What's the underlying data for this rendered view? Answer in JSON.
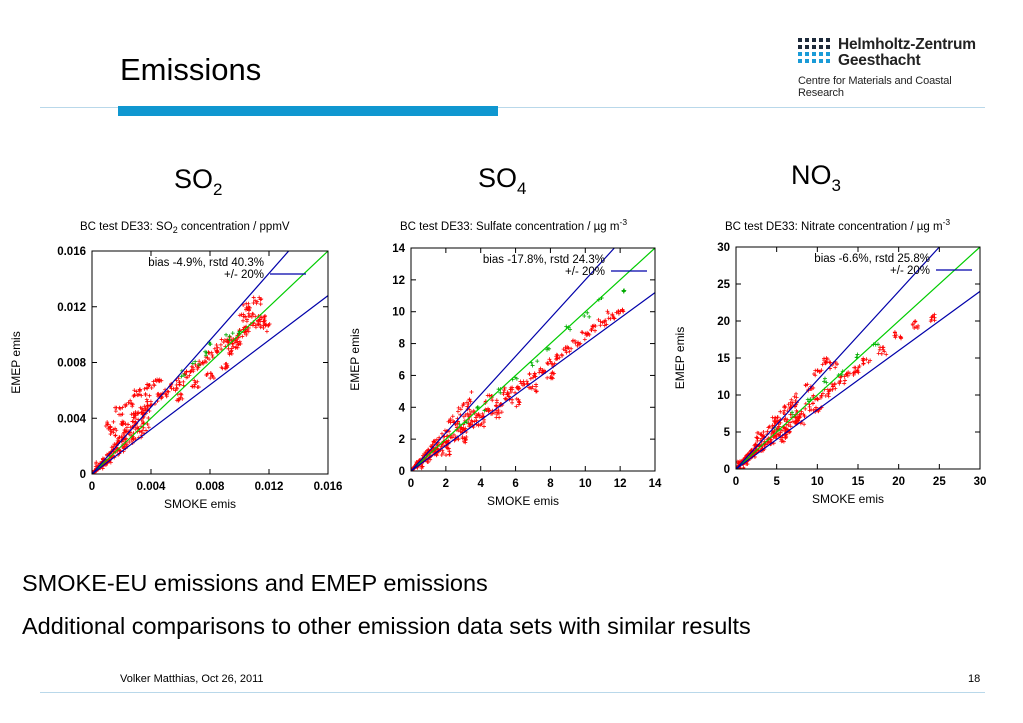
{
  "slide": {
    "title": "Emissions",
    "logo": {
      "name_line1": "Helmholtz-Zentrum",
      "name_line2": "Geesthacht",
      "subtitle": "Centre for Materials and Coastal Research",
      "colors": {
        "dark": "#1d2a3a",
        "blue": "#1a9bd7"
      }
    },
    "species": [
      {
        "base": "SO",
        "sub": "2"
      },
      {
        "base": "SO",
        "sub": "4"
      },
      {
        "base": "NO",
        "sub": "3"
      }
    ],
    "bullets": [
      "SMOKE-EU emissions and EMEP emissions",
      "Additional comparisons to other emission data sets with similar results"
    ],
    "footer": {
      "author_date": "Volker Matthias, Oct 26, 2011",
      "page": "18"
    },
    "colors": {
      "accent": "#0f97d0",
      "rule": "#b9d8ea"
    }
  },
  "chart_data": [
    {
      "type": "scatter",
      "title_main": "BC test DE33: SO",
      "title_sub": "2",
      "title_rest": " concentration / ppmV",
      "xlabel": "SMOKE emis",
      "ylabel": "EMEP emis",
      "xlim": [
        0,
        0.016
      ],
      "ylim": [
        0,
        0.016
      ],
      "xticks": [
        "0",
        "0.004",
        "0.008",
        "0.012",
        "0.016"
      ],
      "yticks": [
        "0",
        "0.004",
        "0.008",
        "0.012",
        "0.016"
      ],
      "legend": {
        "position": "top-left",
        "entries": [
          "bias -4.9%, rstd 40.3%",
          "+/- 20%"
        ]
      },
      "lines": [
        {
          "name": "1:1",
          "slope": 1.0,
          "color": "#00cc00"
        },
        {
          "name": "+20%",
          "slope": 1.2,
          "color": "#0000aa"
        },
        {
          "name": "-20%",
          "slope": 0.8,
          "color": "#0000aa"
        }
      ],
      "scatter_color": "#ff0000",
      "series": [
        {
          "name": "red",
          "color": "#ff0000",
          "points": [
            [
              0.0005,
              0.0006
            ],
            [
              0.001,
              0.0009
            ],
            [
              0.0015,
              0.0018
            ],
            [
              0.002,
              0.0024
            ],
            [
              0.0025,
              0.0029
            ],
            [
              0.003,
              0.0035
            ],
            [
              0.0035,
              0.0045
            ],
            [
              0.004,
              0.005
            ],
            [
              0.0045,
              0.0055
            ],
            [
              0.005,
              0.0058
            ],
            [
              0.0055,
              0.0062
            ],
            [
              0.006,
              0.0066
            ],
            [
              0.0065,
              0.0071
            ],
            [
              0.007,
              0.0076
            ],
            [
              0.0075,
              0.008
            ],
            [
              0.008,
              0.0085
            ],
            [
              0.0085,
              0.009
            ],
            [
              0.009,
              0.0094
            ],
            [
              0.0095,
              0.0096
            ],
            [
              0.01,
              0.0098
            ],
            [
              0.0105,
              0.0104
            ],
            [
              0.011,
              0.0108
            ],
            [
              0.0115,
              0.0112
            ],
            [
              0.0012,
              0.0035
            ],
            [
              0.0018,
              0.0045
            ],
            [
              0.0025,
              0.005
            ],
            [
              0.003,
              0.0058
            ],
            [
              0.0028,
              0.0042
            ],
            [
              0.0022,
              0.0038
            ],
            [
              0.004,
              0.0064
            ],
            [
              0.0045,
              0.0066
            ],
            [
              0.0035,
              0.0059
            ],
            [
              0.0015,
              0.003
            ],
            [
              0.006,
              0.0055
            ],
            [
              0.007,
              0.0065
            ],
            [
              0.008,
              0.007
            ],
            [
              0.009,
              0.0078
            ],
            [
              0.0105,
              0.012
            ],
            [
              0.0112,
              0.0124
            ],
            [
              0.0108,
              0.0115
            ],
            [
              0.0103,
              0.0112
            ],
            [
              0.0095,
              0.0088
            ],
            [
              0.0098,
              0.0093
            ],
            [
              0.0115,
              0.0108
            ],
            [
              0.0118,
              0.0105
            ],
            [
              0.0102,
              0.0101
            ]
          ]
        },
        {
          "name": "green",
          "color": "#00aa00",
          "points": [
            [
              0.006,
              0.0072
            ],
            [
              0.007,
              0.0079
            ],
            [
              0.0075,
              0.0085
            ],
            [
              0.0082,
              0.0092
            ],
            [
              0.0092,
              0.0098
            ],
            [
              0.0098,
              0.01
            ]
          ]
        }
      ]
    },
    {
      "type": "scatter",
      "title_main": "BC test DE33: Sulfate concentration / µg m",
      "title_sup": "-3",
      "xlabel": "SMOKE emis",
      "ylabel": "EMEP emis",
      "xlim": [
        0,
        14
      ],
      "ylim": [
        0,
        14
      ],
      "xticks": [
        "0",
        "2",
        "4",
        "6",
        "8",
        "10",
        "12",
        "14"
      ],
      "yticks": [
        "0",
        "2",
        "4",
        "6",
        "8",
        "10",
        "12",
        "14"
      ],
      "legend": {
        "position": "top-left",
        "entries": [
          "bias -17.8%, rstd 24.3%",
          "+/- 20%"
        ]
      },
      "lines": [
        {
          "name": "1:1",
          "slope": 1.0,
          "color": "#00cc00"
        },
        {
          "name": "+20%",
          "slope": 1.2,
          "color": "#0000aa"
        },
        {
          "name": "-20%",
          "slope": 0.8,
          "color": "#0000aa"
        }
      ],
      "scatter_color": "#ff0000",
      "series": [
        {
          "name": "red",
          "color": "#ff0000",
          "points": [
            [
              0.5,
              0.4
            ],
            [
              1,
              0.8
            ],
            [
              1.5,
              1.2
            ],
            [
              2,
              1.7
            ],
            [
              2.5,
              2.1
            ],
            [
              3,
              2.5
            ],
            [
              3.5,
              3.0
            ],
            [
              4,
              3.4
            ],
            [
              4.5,
              3.8
            ],
            [
              5,
              4.2
            ],
            [
              5.5,
              4.7
            ],
            [
              6,
              5.1
            ],
            [
              6.5,
              5.6
            ],
            [
              7,
              6.0
            ],
            [
              7.5,
              6.4
            ],
            [
              8,
              6.8
            ],
            [
              8.5,
              7.2
            ],
            [
              9,
              7.6
            ],
            [
              10,
              8.5
            ],
            [
              11,
              9.3
            ],
            [
              12,
              10.0
            ],
            [
              3,
              2.0
            ],
            [
              4,
              3.0
            ],
            [
              5,
              3.6
            ],
            [
              6,
              4.3
            ],
            [
              4.5,
              4.5
            ],
            [
              5.5,
              5.0
            ],
            [
              3.5,
              3.6
            ],
            [
              2,
              1.2
            ],
            [
              7,
              5.2
            ],
            [
              8,
              6.0
            ],
            [
              10.5,
              9.0
            ],
            [
              11.5,
              9.8
            ],
            [
              9.5,
              8.0
            ]
          ]
        },
        {
          "name": "green",
          "color": "#00aa00",
          "points": [
            [
              3,
              3.0
            ],
            [
              4,
              4.0
            ],
            [
              5,
              4.9
            ],
            [
              6,
              5.9
            ],
            [
              7,
              6.8
            ],
            [
              8,
              7.8
            ],
            [
              9,
              8.9
            ],
            [
              10,
              9.8
            ],
            [
              11,
              10.8
            ],
            [
              12,
              11.4
            ]
          ]
        }
      ]
    },
    {
      "type": "scatter",
      "title_main": "BC test DE33: Nitrate concentration / µg m",
      "title_sup": "-3",
      "xlabel": "SMOKE emis",
      "ylabel": "EMEP emis",
      "xlim": [
        0,
        30
      ],
      "ylim": [
        0,
        30
      ],
      "xticks": [
        "0",
        "5",
        "10",
        "15",
        "20",
        "25",
        "30"
      ],
      "yticks": [
        "0",
        "5",
        "10",
        "15",
        "20",
        "25",
        "30"
      ],
      "legend": {
        "position": "top-left",
        "entries": [
          "bias -6.6%, rstd 25.8%",
          "+/- 20%"
        ]
      },
      "lines": [
        {
          "name": "1:1",
          "slope": 1.0,
          "color": "#00cc00"
        },
        {
          "name": "+20%",
          "slope": 1.2,
          "color": "#0000aa"
        },
        {
          "name": "-20%",
          "slope": 0.8,
          "color": "#0000aa"
        }
      ],
      "scatter_color": "#ff0000",
      "series": [
        {
          "name": "red",
          "color": "#ff0000",
          "points": [
            [
              0.5,
              0.5
            ],
            [
              1,
              1.0
            ],
            [
              2,
              1.9
            ],
            [
              3,
              2.8
            ],
            [
              4,
              3.8
            ],
            [
              5,
              4.7
            ],
            [
              6,
              5.6
            ],
            [
              7,
              6.6
            ],
            [
              8,
              7.5
            ],
            [
              9,
              8.4
            ],
            [
              10,
              9.4
            ],
            [
              11,
              10.3
            ],
            [
              12,
              11.0
            ],
            [
              13,
              12.0
            ],
            [
              14,
              12.8
            ],
            [
              15,
              13.5
            ],
            [
              3,
              4.5
            ],
            [
              5,
              6.5
            ],
            [
              7,
              8.5
            ],
            [
              9,
              11.0
            ],
            [
              10,
              13.0
            ],
            [
              11,
              14.5
            ],
            [
              12,
              14.0
            ],
            [
              6,
              4.0
            ],
            [
              8,
              6.5
            ],
            [
              10,
              8.0
            ],
            [
              18,
              16.0
            ],
            [
              20,
              18.0
            ],
            [
              22,
              19.5
            ],
            [
              24,
              20.5
            ],
            [
              16,
              14.5
            ]
          ]
        },
        {
          "name": "green",
          "color": "#00aa00",
          "points": [
            [
              5,
              5.5
            ],
            [
              7,
              7.5
            ],
            [
              9,
              9.6
            ],
            [
              11,
              11.8
            ],
            [
              13,
              13.2
            ],
            [
              15,
              15.4
            ],
            [
              17,
              17.0
            ]
          ]
        }
      ]
    }
  ]
}
